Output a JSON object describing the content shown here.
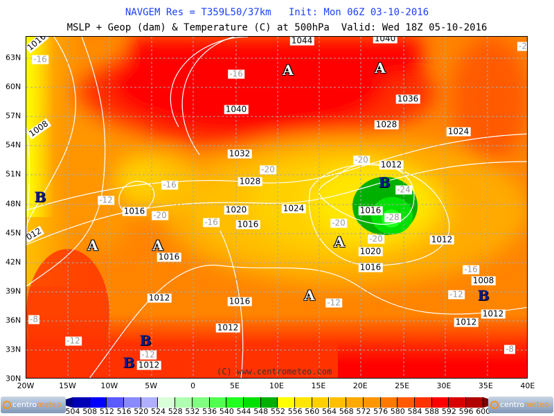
{
  "header": {
    "line1": "NAVGEM Res = T359L50/37km   Init: Mon 06Z 03-10-2016",
    "line2": "MSLP + Geop (dam) & Temperature (C) at 500hPa  Valid: Wed 18Z 05-10-2016"
  },
  "map": {
    "longitude_labels": [
      "20W",
      "15W",
      "10W",
      "5W",
      "0",
      "5E",
      "10E",
      "15E",
      "20E",
      "25E",
      "30E",
      "35E",
      "40E"
    ],
    "latitude_labels": [
      "63N",
      "60N",
      "57N",
      "54N",
      "51N",
      "48N",
      "45N",
      "42N",
      "39N",
      "36N",
      "33N",
      "30N"
    ],
    "isobar_labels": [
      "1044",
      "1040",
      "1040",
      "1036",
      "1032",
      "1028",
      "1024",
      "1012",
      "1028",
      "1020",
      "1016",
      "1024",
      "1016",
      "1016",
      "1012",
      "1020",
      "1016",
      "1016",
      "1016",
      "1012",
      "1008",
      "1012",
      "1012",
      "1012",
      "1012",
      "1008",
      "012",
      "1016"
    ],
    "temperature_labels": [
      "-16",
      "-16",
      "-20",
      "-20",
      "-16",
      "-12",
      "-20",
      "-16",
      "-24",
      "-28",
      "-20",
      "-20",
      "-16",
      "-12",
      "-12",
      "-12",
      "-12",
      "-8",
      "-8",
      "-2"
    ],
    "high_markers": [
      "A",
      "A",
      "A",
      "A",
      "A",
      "A"
    ],
    "low_markers": [
      "B",
      "B",
      "B",
      "B",
      "B"
    ],
    "copyright": "(C) www.centrometeo.com"
  },
  "colorbar": {
    "ticks": [
      "504",
      "508",
      "512",
      "516",
      "520",
      "524",
      "528",
      "532",
      "536",
      "540",
      "544",
      "548",
      "552",
      "556",
      "560",
      "564",
      "568",
      "572",
      "576",
      "580",
      "584",
      "588",
      "592",
      "596",
      "600"
    ],
    "colors": [
      "#0000b4",
      "#0000ff",
      "#5a5aff",
      "#8a8aff",
      "#b0b0ff",
      "#d8ffd8",
      "#b0ffb0",
      "#80ff80",
      "#50ff50",
      "#20ff20",
      "#00e000",
      "#00b000",
      "#ffff00",
      "#ffe600",
      "#ffd000",
      "#ffbf00",
      "#ffaa00",
      "#ff9600",
      "#ff7800",
      "#ff5a00",
      "#ff3200",
      "#ff0000",
      "#d80000",
      "#b00000"
    ],
    "under_color": "#000080",
    "over_color": "#800000",
    "logo_text_1": "centro",
    "logo_text_2": "meteo"
  }
}
